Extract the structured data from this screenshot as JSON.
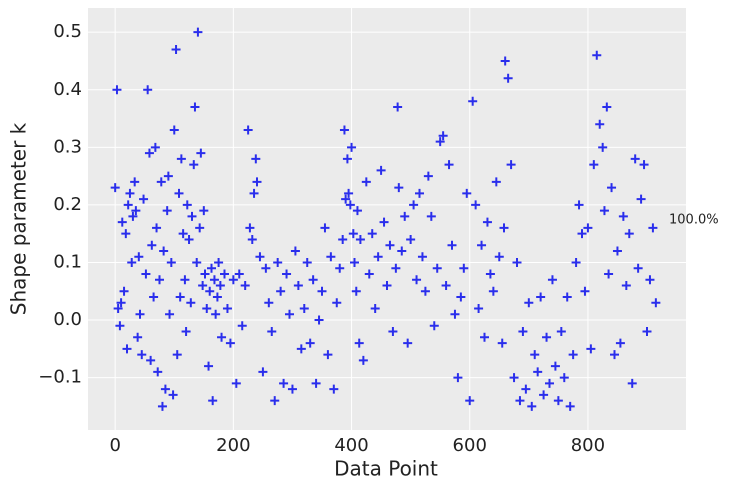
{
  "chart_data": {
    "type": "scatter",
    "xlabel": "Data Point",
    "ylabel": "Shape parameter k",
    "annotation": "100.0%",
    "color": "#2a2eec",
    "background": "#ebebeb",
    "grid": true,
    "xlim": [
      -46,
      966
    ],
    "ylim": [
      -0.191,
      0.542
    ],
    "xticks": [
      0,
      200,
      400,
      600,
      800
    ],
    "yticks": [
      {
        "value": -0.1,
        "label": "−0.1"
      },
      {
        "value": 0,
        "label": "0.0"
      },
      0.1,
      0.2,
      0.3,
      0.4,
      0.5
    ],
    "x": [
      0,
      3,
      5,
      8,
      10,
      12,
      15,
      18,
      20,
      22,
      25,
      28,
      30,
      33,
      35,
      38,
      40,
      42,
      45,
      48,
      52,
      55,
      58,
      60,
      62,
      65,
      68,
      70,
      72,
      75,
      78,
      80,
      82,
      85,
      88,
      90,
      92,
      95,
      98,
      100,
      103,
      105,
      108,
      110,
      112,
      115,
      118,
      120,
      122,
      125,
      128,
      130,
      133,
      135,
      138,
      140,
      143,
      145,
      148,
      150,
      152,
      155,
      158,
      160,
      163,
      165,
      168,
      170,
      173,
      175,
      178,
      180,
      185,
      190,
      195,
      200,
      205,
      210,
      215,
      220,
      225,
      228,
      232,
      235,
      238,
      240,
      245,
      250,
      255,
      260,
      265,
      270,
      275,
      280,
      285,
      290,
      295,
      300,
      305,
      310,
      315,
      320,
      325,
      330,
      335,
      340,
      345,
      350,
      355,
      360,
      365,
      370,
      375,
      380,
      385,
      388,
      390,
      393,
      395,
      398,
      400,
      403,
      405,
      408,
      410,
      413,
      415,
      420,
      425,
      430,
      435,
      440,
      445,
      450,
      455,
      460,
      465,
      470,
      475,
      478,
      480,
      485,
      490,
      495,
      500,
      505,
      510,
      515,
      520,
      525,
      530,
      535,
      540,
      545,
      550,
      555,
      560,
      565,
      570,
      575,
      580,
      585,
      590,
      595,
      600,
      605,
      610,
      615,
      620,
      625,
      630,
      635,
      640,
      645,
      650,
      655,
      658,
      660,
      665,
      670,
      675,
      680,
      685,
      690,
      695,
      700,
      705,
      710,
      715,
      720,
      725,
      730,
      735,
      740,
      745,
      750,
      755,
      760,
      765,
      770,
      775,
      780,
      785,
      790,
      795,
      800,
      805,
      810,
      815,
      820,
      825,
      828,
      832,
      835,
      840,
      845,
      850,
      855,
      860,
      865,
      870,
      875,
      880,
      885,
      890,
      895,
      900,
      905,
      910,
      915
    ],
    "values": [
      0.23,
      0.4,
      0.02,
      -0.01,
      0.03,
      0.17,
      0.05,
      0.15,
      -0.05,
      0.2,
      0.22,
      0.1,
      0.18,
      0.24,
      0.19,
      -0.03,
      0.11,
      0.01,
      -0.06,
      0.21,
      0.08,
      0.4,
      0.29,
      -0.07,
      0.13,
      0.04,
      0.3,
      0.16,
      -0.09,
      0.07,
      0.24,
      -0.15,
      0.12,
      -0.12,
      0.19,
      0.25,
      0.01,
      0.1,
      -0.13,
      0.33,
      0.47,
      -0.06,
      0.22,
      0.04,
      0.28,
      0.15,
      0.07,
      -0.02,
      0.2,
      0.14,
      0.03,
      0.18,
      0.27,
      0.37,
      0.1,
      0.5,
      0.16,
      0.29,
      0.06,
      0.19,
      0.08,
      0.02,
      -0.08,
      0.05,
      0.09,
      -0.14,
      0.07,
      0.01,
      0.04,
      0.1,
      0.06,
      -0.03,
      0.08,
      0.02,
      -0.04,
      0.07,
      -0.11,
      0.08,
      -0.01,
      0.06,
      0.33,
      0.16,
      0.14,
      0.22,
      0.28,
      0.24,
      0.11,
      -0.09,
      0.09,
      0.03,
      -0.02,
      -0.14,
      0.1,
      0.05,
      -0.11,
      0.08,
      0.01,
      -0.12,
      0.12,
      0.06,
      -0.05,
      0.02,
      0.1,
      -0.04,
      0.07,
      -0.11,
      0.0,
      0.05,
      0.16,
      -0.06,
      0.11,
      -0.12,
      0.03,
      0.09,
      0.14,
      0.33,
      0.21,
      0.28,
      0.22,
      0.2,
      0.3,
      0.15,
      0.1,
      0.05,
      0.19,
      -0.04,
      0.14,
      -0.07,
      0.24,
      0.08,
      0.15,
      0.02,
      0.11,
      0.26,
      0.17,
      0.06,
      0.13,
      -0.02,
      0.09,
      0.37,
      0.23,
      0.12,
      0.18,
      -0.04,
      0.14,
      0.2,
      0.07,
      0.22,
      0.11,
      0.05,
      0.25,
      0.18,
      -0.01,
      0.09,
      0.31,
      0.32,
      0.06,
      0.27,
      0.13,
      0.01,
      -0.1,
      0.04,
      0.09,
      0.22,
      -0.14,
      0.38,
      0.2,
      0.02,
      0.13,
      -0.03,
      0.17,
      0.08,
      0.05,
      0.24,
      0.11,
      -0.04,
      0.16,
      0.45,
      0.42,
      0.27,
      -0.1,
      0.1,
      -0.14,
      -0.02,
      -0.12,
      0.03,
      -0.15,
      -0.06,
      -0.09,
      0.04,
      -0.13,
      -0.03,
      -0.11,
      0.07,
      -0.08,
      -0.14,
      -0.02,
      -0.1,
      0.04,
      -0.15,
      -0.06,
      0.1,
      0.2,
      0.15,
      0.05,
      0.16,
      -0.05,
      0.27,
      0.46,
      0.34,
      0.3,
      0.19,
      0.37,
      0.08,
      0.23,
      -0.06,
      0.12,
      -0.04,
      0.18,
      0.06,
      0.15,
      -0.11,
      0.28,
      0.09,
      0.21,
      0.27,
      -0.02,
      0.07,
      0.16,
      0.03
    ]
  }
}
